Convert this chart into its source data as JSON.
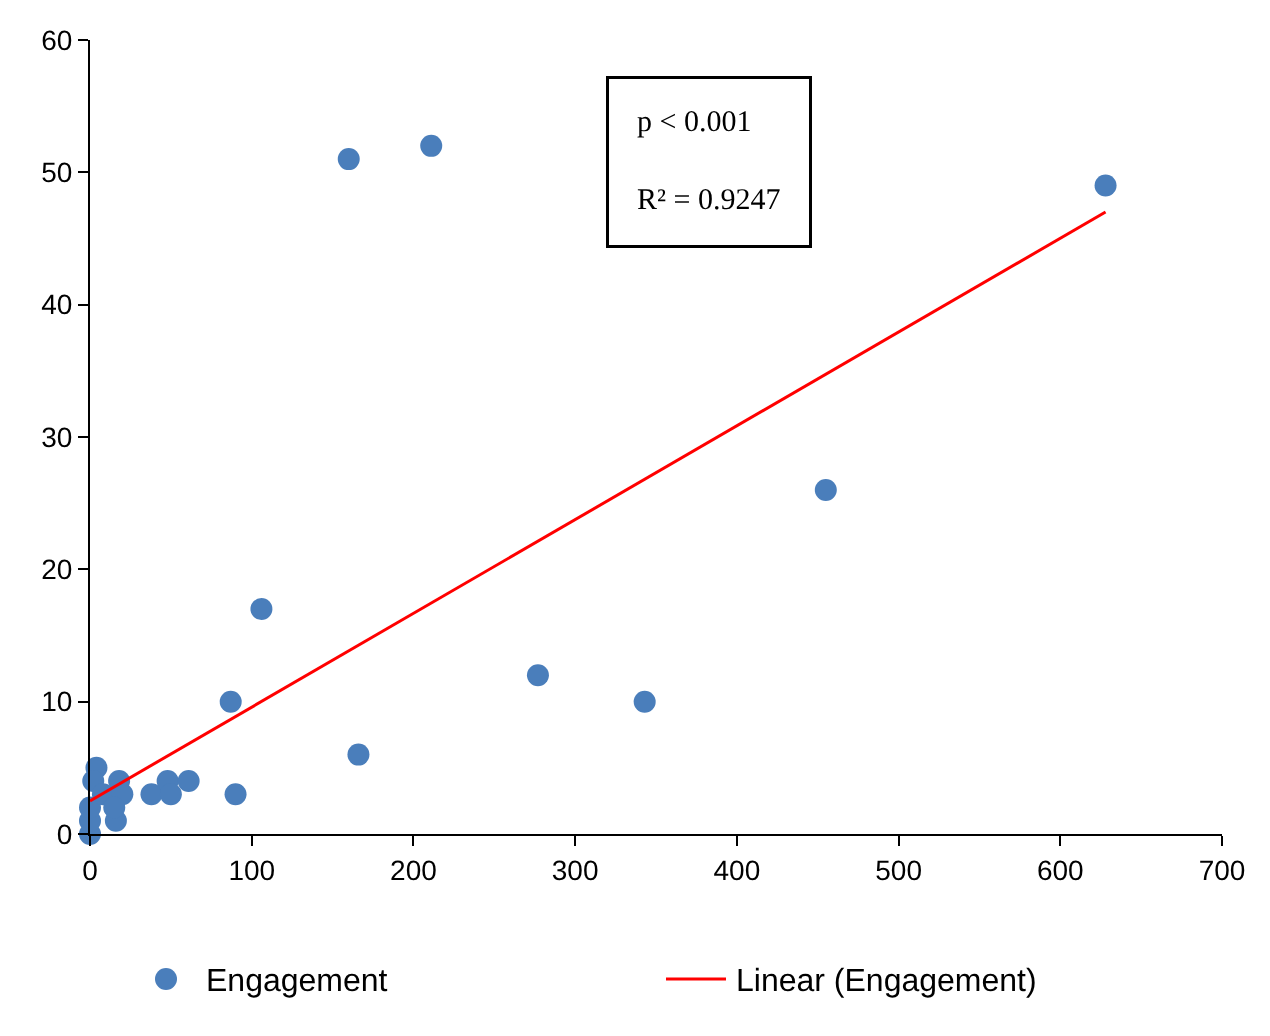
{
  "chart_data": {
    "type": "scatter",
    "xlim": [
      0,
      700
    ],
    "xticks": [
      0,
      100,
      200,
      300,
      400,
      500,
      600,
      700
    ],
    "ylim": [
      0,
      60
    ],
    "yticks": [
      0,
      10,
      20,
      30,
      40,
      50,
      60
    ],
    "grid": false,
    "legend": "bottom",
    "annotations": [
      "p < 0.001",
      "R² = 0.9247"
    ],
    "series": [
      {
        "name": "Engagement",
        "marker": "circle",
        "color": "#4a7ebb",
        "x": [
          628,
          211,
          160,
          455,
          106,
          277,
          343,
          87,
          166,
          90,
          38,
          48,
          50,
          61,
          4,
          18,
          16,
          0,
          2,
          0,
          0,
          8,
          20,
          15
        ],
        "values": [
          49,
          52,
          51,
          26,
          17,
          12,
          10,
          10,
          6,
          3,
          3,
          4,
          3,
          4,
          5,
          4,
          1,
          0,
          4,
          1,
          2,
          3,
          3,
          2
        ]
      },
      {
        "name": "Linear (Engagement)",
        "type": "line",
        "color": "#ff0000",
        "x": [
          0,
          628
        ],
        "values": [
          2.5,
          47
        ]
      }
    ]
  }
}
